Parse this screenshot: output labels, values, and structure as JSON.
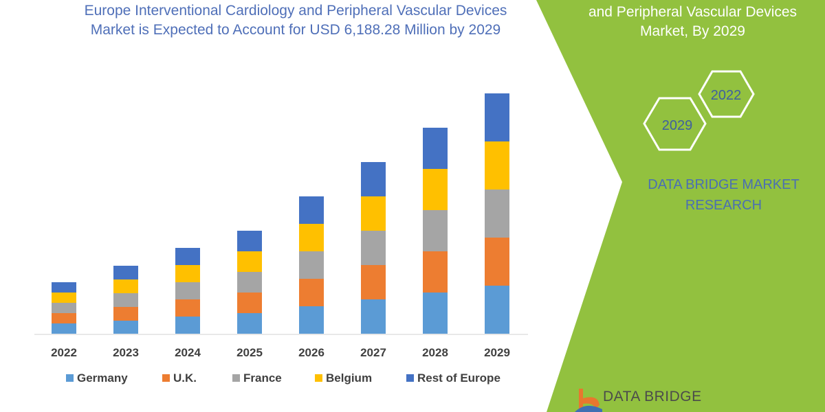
{
  "header": {
    "title_line1": "Europe Interventional Cardiology and Peripheral Vascular Devices",
    "title_line2": "Market is Expected to Account for USD 6,188.28 Million by 2029"
  },
  "side_panel": {
    "title_line1": "and Peripheral Vascular Devices",
    "title_line2": "Market, By 2029",
    "hex_badges": [
      "2029",
      "2022"
    ],
    "brand_line1": "DATA BRIDGE MARKET",
    "brand_line2": "RESEARCH",
    "logo_text": "DATA BRIDGE",
    "panel_color": "#92c13f"
  },
  "chart_data": {
    "type": "bar",
    "stacked": true,
    "categories": [
      "2022",
      "2023",
      "2024",
      "2025",
      "2026",
      "2027",
      "2028",
      "2029"
    ],
    "series": [
      {
        "name": "Germany",
        "color": "#5b9bd5",
        "values": [
          15,
          19,
          25,
          30,
          40,
          50,
          60,
          70
        ]
      },
      {
        "name": "U.K.",
        "color": "#ed7d31",
        "values": [
          15,
          20,
          25,
          30,
          40,
          50,
          60,
          70
        ]
      },
      {
        "name": "France",
        "color": "#a5a5a5",
        "values": [
          15,
          20,
          25,
          30,
          40,
          50,
          60,
          70
        ]
      },
      {
        "name": "Belgium",
        "color": "#ffc000",
        "values": [
          15,
          20,
          25,
          30,
          40,
          50,
          60,
          70
        ]
      },
      {
        "name": "Rest of Europe",
        "color": "#4472c4",
        "values": [
          15,
          20,
          25,
          30,
          40,
          50,
          60,
          70
        ]
      }
    ],
    "legend_position": "bottom",
    "grid": false,
    "ylim": [
      0,
      360
    ]
  }
}
